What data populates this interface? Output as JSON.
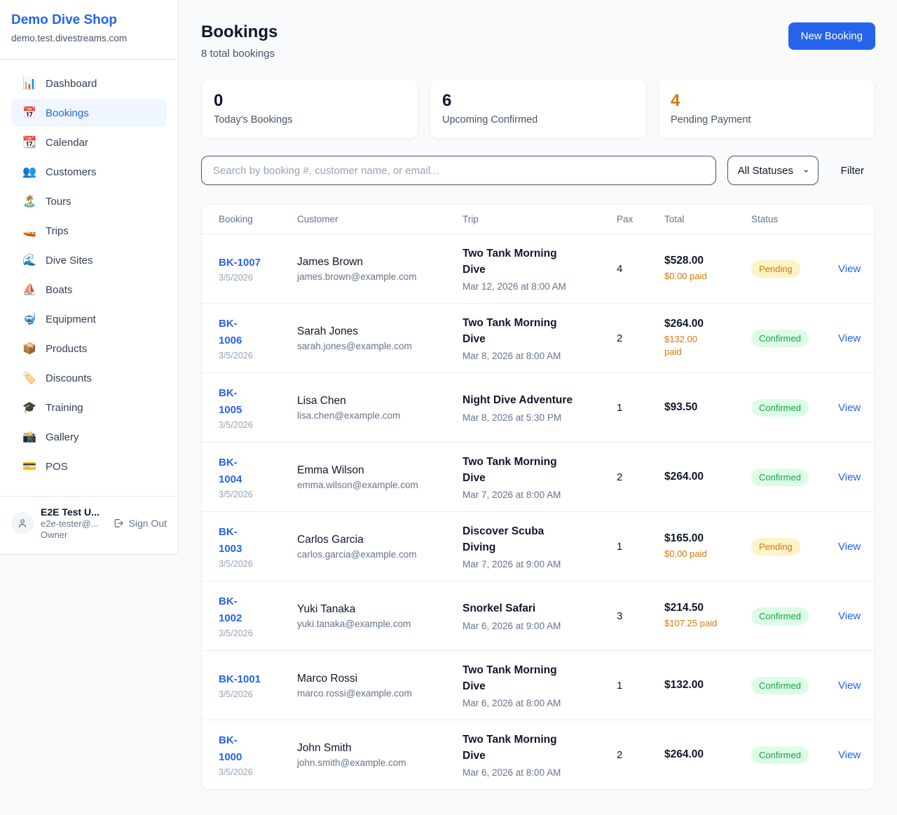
{
  "colors": {
    "accent_blue": "#2563EB",
    "pending_text": "#D97706",
    "pending_bg": "#FEF3C7",
    "confirmed_text": "#16A34A",
    "confirmed_bg": "#DCFCE7",
    "paid_orange": "#D97706",
    "page_bg": "#F8FAFC"
  },
  "sidebar": {
    "shop_name": "Demo Dive Shop",
    "domain": "demo.test.divestreams.com",
    "items": [
      {
        "label": "Dashboard",
        "icon": "📊",
        "icon_name": "bar-chart-icon",
        "active": false
      },
      {
        "label": "Bookings",
        "icon": "📅",
        "icon_name": "calendar-icon",
        "active": true
      },
      {
        "label": "Calendar",
        "icon": "📆",
        "icon_name": "tear-off-calendar-icon",
        "active": false
      },
      {
        "label": "Customers",
        "icon": "👥",
        "icon_name": "people-icon",
        "active": false
      },
      {
        "label": "Tours",
        "icon": "🏝️",
        "icon_name": "island-icon",
        "active": false
      },
      {
        "label": "Trips",
        "icon": "🚤",
        "icon_name": "speedboat-icon",
        "active": false
      },
      {
        "label": "Dive Sites",
        "icon": "🌊",
        "icon_name": "wave-icon",
        "active": false
      },
      {
        "label": "Boats",
        "icon": "⛵",
        "icon_name": "sailboat-icon",
        "active": false
      },
      {
        "label": "Equipment",
        "icon": "🤿",
        "icon_name": "diving-mask-icon",
        "active": false
      },
      {
        "label": "Products",
        "icon": "📦",
        "icon_name": "package-icon",
        "active": false
      },
      {
        "label": "Discounts",
        "icon": "🏷️",
        "icon_name": "tag-icon",
        "active": false
      },
      {
        "label": "Training",
        "icon": "🎓",
        "icon_name": "graduation-cap-icon",
        "active": false
      },
      {
        "label": "Gallery",
        "icon": "📸",
        "icon_name": "camera-icon",
        "active": false
      },
      {
        "label": "POS",
        "icon": "💳",
        "icon_name": "credit-card-icon",
        "active": false
      }
    ],
    "user": {
      "name": "E2E Test U...",
      "email": "e2e-tester@...",
      "role": "Owner",
      "sign_out_label": "Sign Out"
    }
  },
  "header": {
    "title": "Bookings",
    "subtitle": "8 total bookings",
    "new_booking_label": "New Booking"
  },
  "stats": [
    {
      "value": "0",
      "label": "Today's Bookings",
      "value_color": "#0F172A"
    },
    {
      "value": "6",
      "label": "Upcoming Confirmed",
      "value_color": "#0F172A"
    },
    {
      "value": "4",
      "label": "Pending Payment",
      "value_color": "#D97706"
    }
  ],
  "filters": {
    "search_placeholder": "Search by booking #, customer name, or email...",
    "status_selected": "All Statuses",
    "filter_label": "Filter"
  },
  "table": {
    "columns": [
      "Booking",
      "Customer",
      "Trip",
      "Pax",
      "Total",
      "Status"
    ],
    "view_label": "View",
    "rows": [
      {
        "id": "BK-1007",
        "id_wrapped": false,
        "date": "3/5/2026",
        "customer": "James Brown",
        "email": "james.brown@example.com",
        "trip": "Two Tank Morning Dive",
        "trip_time": "Mar 12, 2026 at 8:00 AM",
        "pax": "4",
        "total": "$528.00",
        "paid": "$0.00 paid",
        "paid_wrapped": false,
        "status": "Pending"
      },
      {
        "id": "BK-1006",
        "id_wrapped": true,
        "date": "3/5/2026",
        "customer": "Sarah Jones",
        "email": "sarah.jones@example.com",
        "trip": "Two Tank Morning Dive",
        "trip_time": "Mar 8, 2026 at 8:00 AM",
        "pax": "2",
        "total": "$264.00",
        "paid": "$132.00 paid",
        "paid_wrapped": true,
        "status": "Confirmed"
      },
      {
        "id": "BK-1005",
        "id_wrapped": true,
        "date": "3/5/2026",
        "customer": "Lisa Chen",
        "email": "lisa.chen@example.com",
        "trip": "Night Dive Adventure",
        "trip_time": "Mar 8, 2026 at 5:30 PM",
        "pax": "1",
        "total": "$93.50",
        "paid": null,
        "paid_wrapped": false,
        "status": "Confirmed"
      },
      {
        "id": "BK-1004",
        "id_wrapped": true,
        "date": "3/5/2026",
        "customer": "Emma Wilson",
        "email": "emma.wilson@example.com",
        "trip": "Two Tank Morning Dive",
        "trip_time": "Mar 7, 2026 at 8:00 AM",
        "pax": "2",
        "total": "$264.00",
        "paid": null,
        "paid_wrapped": false,
        "status": "Confirmed"
      },
      {
        "id": "BK-1003",
        "id_wrapped": true,
        "date": "3/5/2026",
        "customer": "Carlos Garcia",
        "email": "carlos.garcia@example.com",
        "trip": "Discover Scuba Diving",
        "trip_time": "Mar 7, 2026 at 9:00 AM",
        "pax": "1",
        "total": "$165.00",
        "paid": "$0.00 paid",
        "paid_wrapped": false,
        "status": "Pending"
      },
      {
        "id": "BK-1002",
        "id_wrapped": true,
        "date": "3/5/2026",
        "customer": "Yuki Tanaka",
        "email": "yuki.tanaka@example.com",
        "trip": "Snorkel Safari",
        "trip_time": "Mar 6, 2026 at 9:00 AM",
        "pax": "3",
        "total": "$214.50",
        "paid": "$107.25 paid",
        "paid_wrapped": false,
        "status": "Confirmed"
      },
      {
        "id": "BK-1001",
        "id_wrapped": false,
        "date": "3/5/2026",
        "customer": "Marco Rossi",
        "email": "marco.rossi@example.com",
        "trip": "Two Tank Morning Dive",
        "trip_time": "Mar 6, 2026 at 8:00 AM",
        "pax": "1",
        "total": "$132.00",
        "paid": null,
        "paid_wrapped": false,
        "status": "Confirmed"
      },
      {
        "id": "BK-1000",
        "id_wrapped": true,
        "date": "3/5/2026",
        "customer": "John Smith",
        "email": "john.smith@example.com",
        "trip": "Two Tank Morning Dive",
        "trip_time": "Mar 6, 2026 at 8:00 AM",
        "pax": "2",
        "total": "$264.00",
        "paid": null,
        "paid_wrapped": false,
        "status": "Confirmed"
      }
    ]
  }
}
